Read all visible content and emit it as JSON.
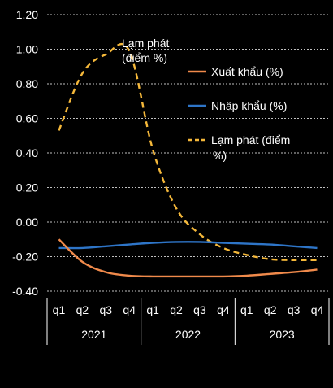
{
  "chart_data": {
    "type": "line",
    "title": "",
    "xlabel": "",
    "ylabel": "",
    "ylim": [
      -0.4,
      1.2
    ],
    "yticks": [
      "1.20",
      "1.00",
      "0.80",
      "0.60",
      "0.40",
      "0.20",
      "0.00",
      "-0.20",
      "-0.40"
    ],
    "ytick_values": [
      1.2,
      1.0,
      0.8,
      0.6,
      0.4,
      0.2,
      0.0,
      -0.2,
      -0.4
    ],
    "grid": "horizontal dashed",
    "legend_position": "right",
    "quarters": [
      "q1",
      "q2",
      "q3",
      "q4",
      "q1",
      "q2",
      "q3",
      "q4",
      "q1",
      "q2",
      "q3",
      "q4"
    ],
    "years": [
      "2021",
      "2022",
      "2023"
    ],
    "series": [
      {
        "name": "Xuất khẩu (%)",
        "color": "#f08a4b",
        "style": "solid",
        "values": [
          -0.1,
          -0.23,
          -0.29,
          -0.31,
          -0.315,
          -0.315,
          -0.315,
          -0.315,
          -0.31,
          -0.3,
          -0.29,
          -0.275
        ]
      },
      {
        "name": "Nhập khẩu (%)",
        "color": "#2e75c8",
        "style": "solid",
        "values": [
          -0.15,
          -0.15,
          -0.14,
          -0.13,
          -0.12,
          -0.115,
          -0.115,
          -0.12,
          -0.125,
          -0.13,
          -0.14,
          -0.15
        ]
      },
      {
        "name": "Lạm phát (điểm %)",
        "color": "#f5b83a",
        "style": "dashed",
        "values": [
          0.53,
          0.86,
          0.97,
          0.99,
          0.42,
          0.08,
          -0.07,
          -0.15,
          -0.19,
          -0.215,
          -0.22,
          -0.22
        ]
      }
    ],
    "annotations": [
      {
        "text": "Lạm phát\n(điểm %)"
      }
    ]
  }
}
